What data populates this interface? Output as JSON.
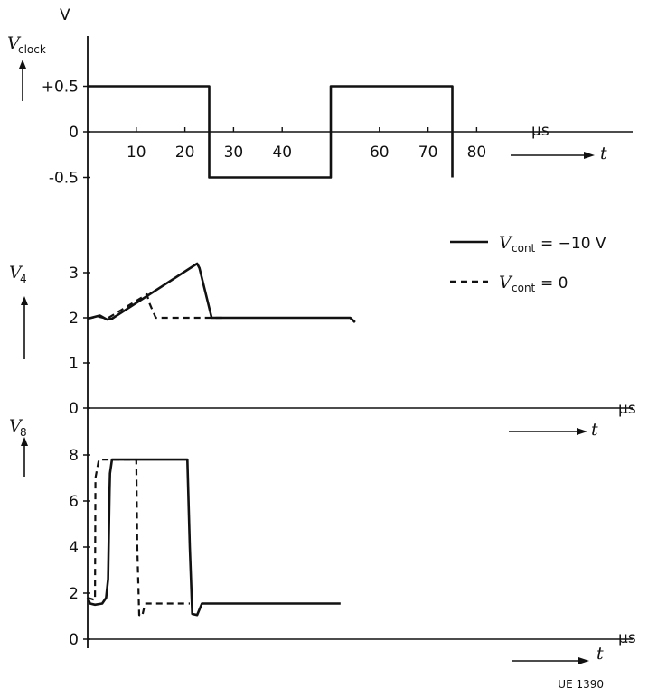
{
  "figure_code": "UE 1390",
  "chart_data": [
    {
      "type": "line",
      "ylabel": {
        "symbol": "V",
        "subscript": "clock"
      },
      "yunit": "V",
      "xunit": "µs",
      "xlabel": "t",
      "xlim": [
        0,
        80
      ],
      "ylim": [
        -0.5,
        0.5
      ],
      "yticks": [
        {
          "value": 0.5,
          "label": "+0.5"
        },
        {
          "value": 0,
          "label": "0"
        },
        {
          "value": -0.5,
          "label": "-0.5"
        }
      ],
      "xticks": [
        {
          "value": 10,
          "label": "10"
        },
        {
          "value": 20,
          "label": "20"
        },
        {
          "value": 30,
          "label": "30"
        },
        {
          "value": 40,
          "label": "40"
        },
        {
          "value": 60,
          "label": "60"
        },
        {
          "value": 70,
          "label": "70"
        },
        {
          "value": 80,
          "label": "80"
        }
      ],
      "series": [
        {
          "style": "solid",
          "x": [
            0,
            25,
            25,
            50,
            50,
            75,
            75
          ],
          "y": [
            0.5,
            0.5,
            -0.5,
            -0.5,
            0.5,
            0.5,
            -0.5
          ]
        }
      ]
    },
    {
      "type": "line",
      "ylabel": {
        "symbol": "V",
        "subscript": "4"
      },
      "xunit": "µs",
      "xlabel": "t",
      "ylim": [
        0,
        3.2
      ],
      "yticks": [
        {
          "value": 3,
          "label": "3"
        },
        {
          "value": 2,
          "label": "2"
        },
        {
          "value": 1,
          "label": "1"
        },
        {
          "value": 0,
          "label": "0"
        }
      ],
      "legend": {
        "position": "top-right",
        "items": [
          {
            "style": "solid",
            "symbol": "V",
            "subscript": "cont",
            "text": " = −10 V"
          },
          {
            "style": "dashed",
            "symbol": "V",
            "subscript": "cont",
            "text": " = 0"
          }
        ]
      },
      "series": [
        {
          "style": "solid",
          "x": [
            0,
            2.5,
            4,
            5,
            22.5,
            23,
            25.5,
            54,
            55
          ],
          "y": [
            1.98,
            2.05,
            1.96,
            1.98,
            3.2,
            3.1,
            2.0,
            2.0,
            1.9
          ]
        },
        {
          "style": "dashed",
          "x": [
            0,
            2,
            4,
            12.2,
            12.6,
            14,
            28
          ],
          "y": [
            1.98,
            2.03,
            1.98,
            2.52,
            2.35,
            2.0,
            2.0
          ]
        }
      ]
    },
    {
      "type": "line",
      "ylabel": {
        "symbol": "V",
        "subscript": "8"
      },
      "xunit": "µs",
      "xlabel": "t",
      "ylim": [
        0,
        8.2
      ],
      "yticks": [
        {
          "value": 8,
          "label": "8"
        },
        {
          "value": 6,
          "label": "6"
        },
        {
          "value": 4,
          "label": "4"
        },
        {
          "value": 2,
          "label": "2"
        },
        {
          "value": 0,
          "label": "0"
        }
      ],
      "series": [
        {
          "style": "solid",
          "x": [
            0,
            0.5,
            1.5,
            3,
            3.8,
            4.2,
            4.5,
            4.6,
            5.0,
            6,
            20.5,
            21,
            21.5,
            22.5,
            23.5,
            52
          ],
          "y": [
            1.8,
            1.55,
            1.5,
            1.55,
            1.8,
            2.6,
            6.4,
            7.2,
            7.8,
            7.8,
            7.8,
            4,
            1.1,
            1.05,
            1.55,
            1.55
          ]
        },
        {
          "style": "dashed",
          "x": [
            0,
            1.5,
            1.6,
            2.3,
            10,
            10.2,
            10.6,
            11.2,
            11.8,
            21
          ],
          "y": [
            1.8,
            1.7,
            7.0,
            7.8,
            7.8,
            4,
            1.05,
            1.0,
            1.55,
            1.55
          ]
        }
      ]
    }
  ]
}
